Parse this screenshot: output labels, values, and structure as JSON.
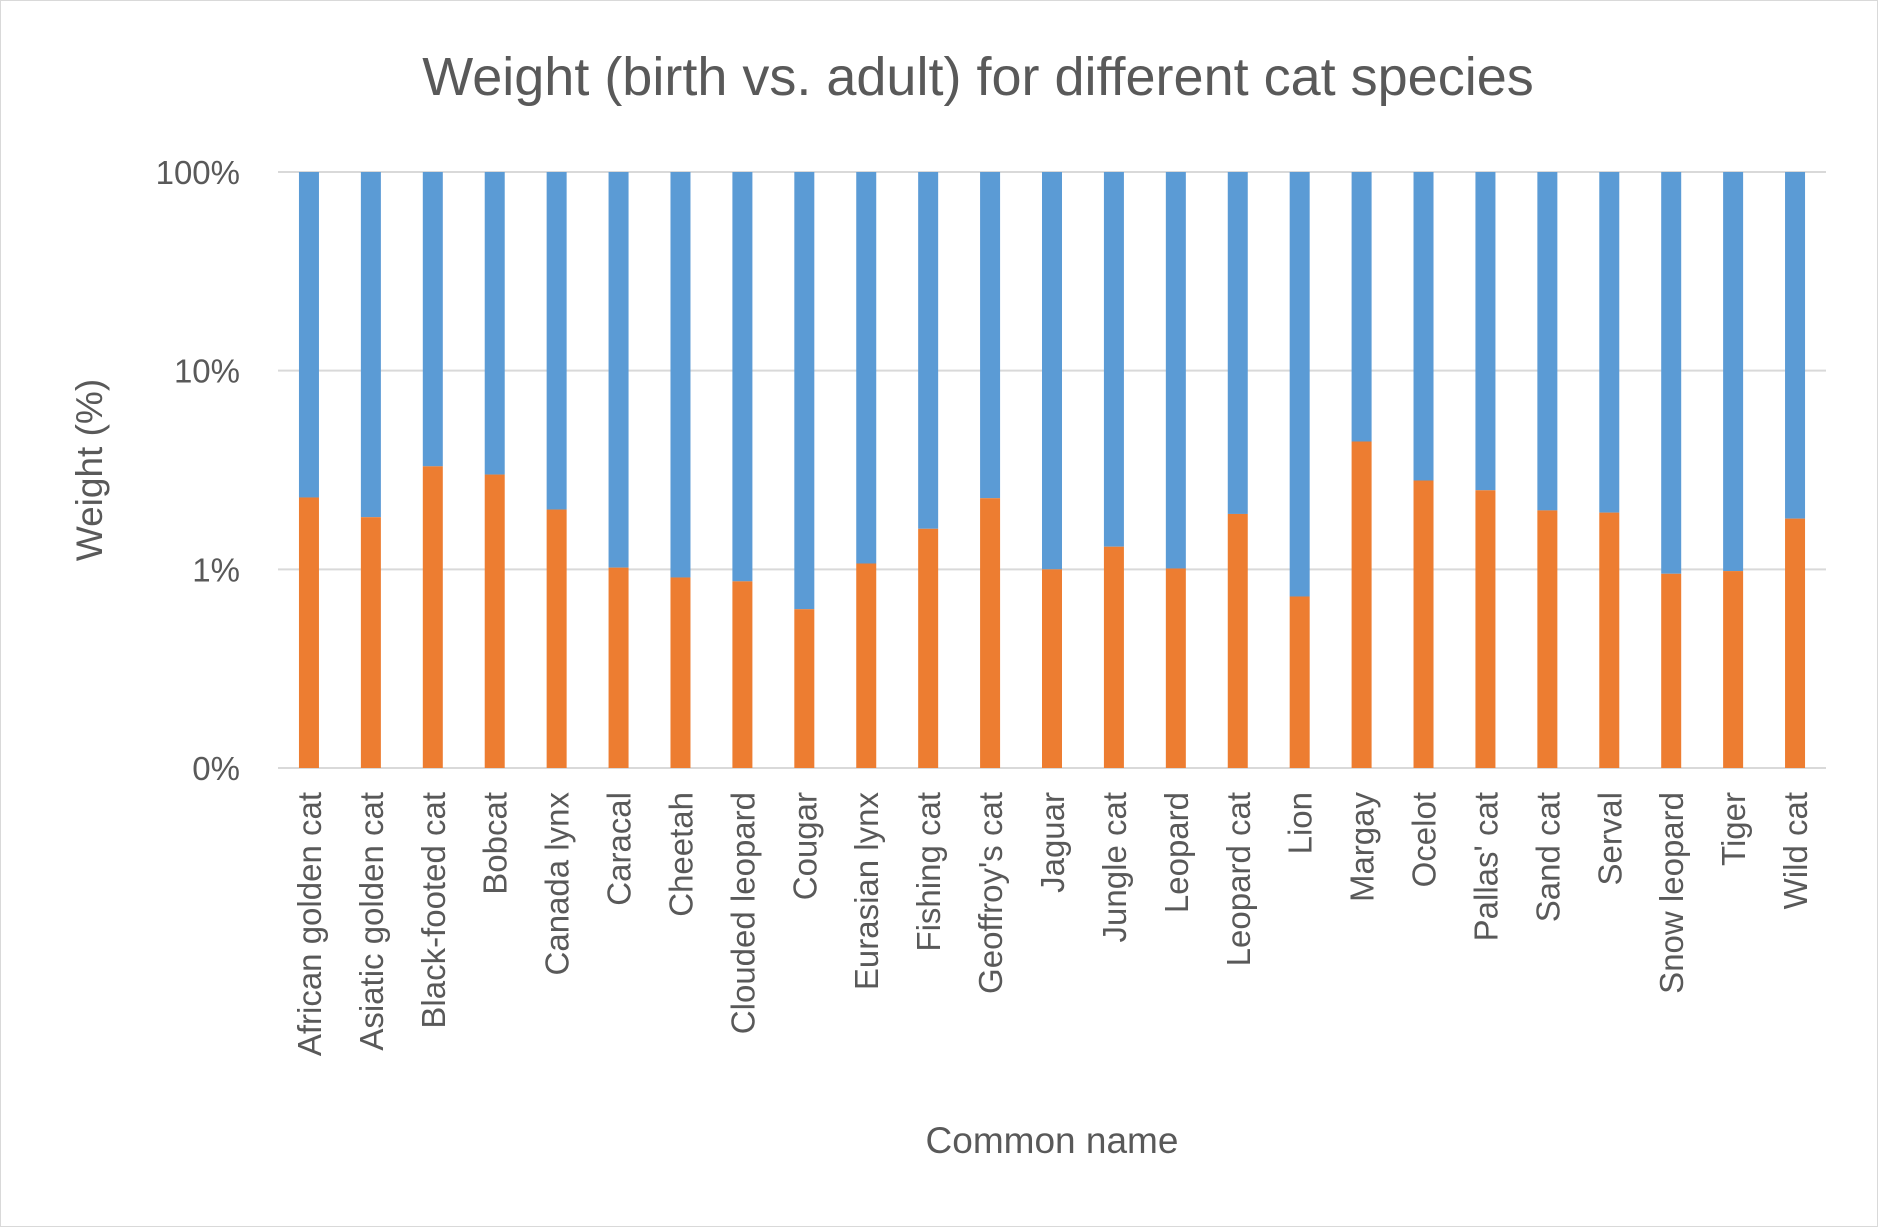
{
  "chart_data": {
    "type": "bar",
    "stacked": true,
    "title": "Weight (birth vs. adult) for different cat species",
    "xlabel": "Common name",
    "ylabel": "Weight (%)",
    "y_scale": "log",
    "y_ticks": [
      "100%",
      "10%",
      "1%",
      "0%"
    ],
    "grid": true,
    "legend": "none",
    "colors": {
      "birth": "#ED7D31",
      "adult": "#5B9BD5",
      "grid": "#d9d9d9",
      "text": "#595959"
    },
    "categories": [
      "African golden cat",
      "Asiatic golden cat",
      "Black-footed cat",
      "Bobcat",
      "Canada lynx",
      "Caracal",
      "Cheetah",
      "Clouded leopard",
      "Cougar",
      "Eurasian lynx",
      "Fishing cat",
      "Geoffroy's cat",
      "Jaguar",
      "Jungle cat",
      "Leopard",
      "Leopard cat",
      "Lion",
      "Margay",
      "Ocelot",
      "Pallas' cat",
      "Sand cat",
      "Serval",
      "Snow leopard",
      "Tiger",
      "Wild cat"
    ],
    "series": [
      {
        "values": [
          2.3,
          1.83,
          3.3,
          3.0,
          2.0,
          1.02,
          0.91,
          0.87,
          0.63,
          1.07,
          1.6,
          2.28,
          1.0,
          1.3,
          1.01,
          1.9,
          0.73,
          4.4,
          2.8,
          2.5,
          1.98,
          1.93,
          0.95,
          0.98,
          1.8
        ]
      },
      {
        "values": [
          97.7,
          98.17,
          96.7,
          97.0,
          98.0,
          98.98,
          99.09,
          99.13,
          99.37,
          98.93,
          98.4,
          97.72,
          99.0,
          98.7,
          98.99,
          98.1,
          99.27,
          95.6,
          97.2,
          97.5,
          98.02,
          98.07,
          99.05,
          99.02,
          98.2
        ]
      }
    ]
  }
}
